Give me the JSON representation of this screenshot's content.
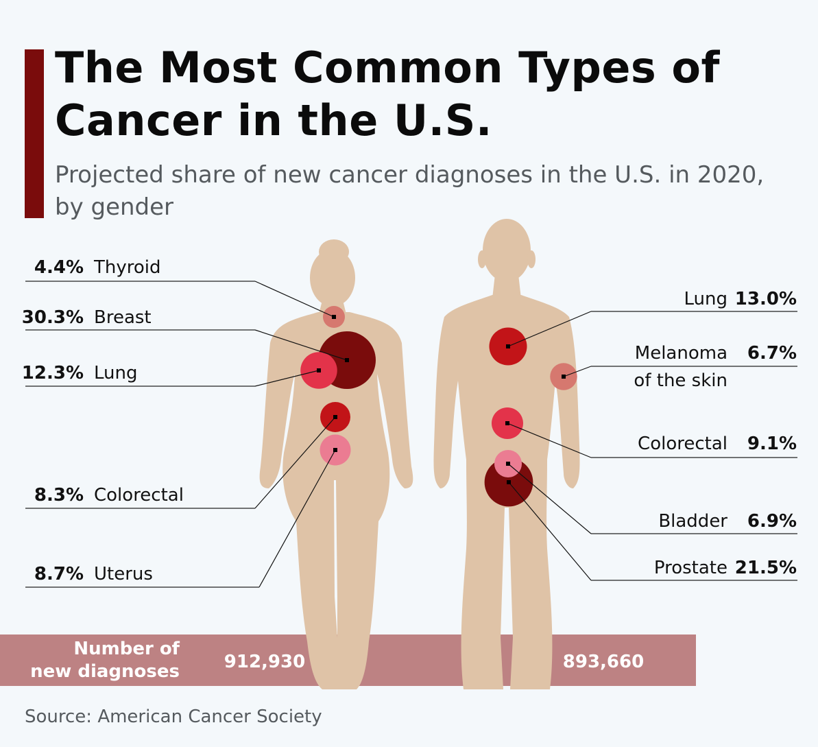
{
  "header": {
    "title": "The Most Common Types of Cancer in the U.S.",
    "subtitle": "Projected share of new cancer diagnoses in the U.S. in 2020, by gender"
  },
  "footer": {
    "source": "Source: American Cancer Society"
  },
  "colors": {
    "accent": "#7a0c0c",
    "body": "#dfc3a7",
    "bar": "#bd8283",
    "highlight_text": "#7a0c0c"
  },
  "chart_data": {
    "type": "bubble",
    "unit": "%",
    "series": [
      {
        "name": "women",
        "diagnoses_label": "912,930",
        "items": [
          {
            "label": "Thyroid",
            "pct_label": "4.4%",
            "value": 4.4,
            "highlight": false,
            "color": "#d6786f"
          },
          {
            "label": "Breast",
            "pct_label": "30.3%",
            "value": 30.3,
            "highlight": true,
            "color": "#7a0c0c"
          },
          {
            "label": "Lung",
            "pct_label": "12.3%",
            "value": 12.3,
            "highlight": false,
            "color": "#e3334a"
          },
          {
            "label": "Colorectal",
            "pct_label": "8.3%",
            "value": 8.3,
            "highlight": false,
            "color": "#c21418"
          },
          {
            "label": "Uterus",
            "pct_label": "8.7%",
            "value": 8.7,
            "highlight": false,
            "color": "#eb7c92"
          }
        ]
      },
      {
        "name": "men",
        "diagnoses_label": "893,660",
        "items": [
          {
            "label": "Lung",
            "pct_label": "13.0%",
            "value": 13.0,
            "highlight": false,
            "color": "#c21418"
          },
          {
            "label": "Melanoma",
            "label2": "of the skin",
            "pct_label": "6.7%",
            "value": 6.7,
            "highlight": false,
            "color": "#d6786f"
          },
          {
            "label": "Colorectal",
            "pct_label": "9.1%",
            "value": 9.1,
            "highlight": false,
            "color": "#e3334a"
          },
          {
            "label": "Bladder",
            "pct_label": "6.9%",
            "value": 6.9,
            "highlight": false,
            "color": "#eb7c92"
          },
          {
            "label": "Prostate",
            "pct_label": "21.5%",
            "value": 21.5,
            "highlight": true,
            "color": "#7a0c0c"
          }
        ]
      }
    ],
    "diagnoses_title": "Number of new diagnoses",
    "diagnoses_title_lines": [
      "Number of",
      "new diagnoses"
    ]
  }
}
